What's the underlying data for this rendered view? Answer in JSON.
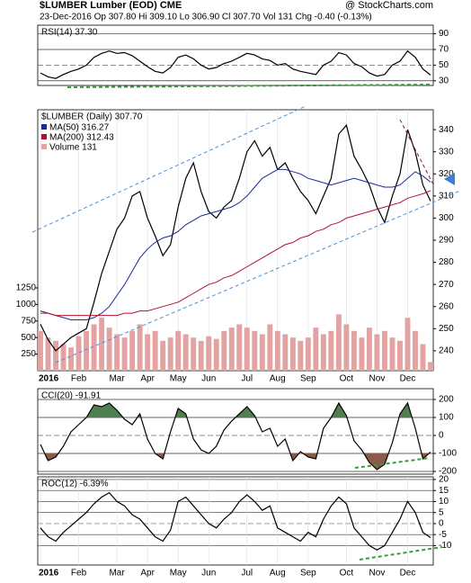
{
  "header": {
    "title": "$LUMBER Lumber (EOD) CME",
    "source": "@ StockCharts.com",
    "quote": "23-Dec-2016  Op 307.80  Hi 309.10  Lo 306.90  Cl 307.70  Vol 131  Chg -0.40 (-0.13%)"
  },
  "chart_data": [
    {
      "type": "line",
      "legend": "RSI(14) 37.30",
      "ylim": [
        24,
        101
      ],
      "yticks": [
        90,
        70,
        50,
        30
      ],
      "grid": true,
      "series": [
        {
          "name": "RSI(14)",
          "color": "#000000",
          "values": [
            40,
            35,
            33,
            38,
            42,
            45,
            50,
            60,
            65,
            68,
            65,
            66,
            62,
            55,
            48,
            42,
            40,
            47,
            60,
            63,
            58,
            50,
            45,
            47,
            52,
            55,
            60,
            65,
            63,
            58,
            56,
            50,
            52,
            45,
            42,
            40,
            38,
            50,
            55,
            66,
            63,
            52,
            48,
            40,
            36,
            38,
            50,
            55,
            68,
            60,
            45,
            37.3
          ]
        }
      ]
    },
    {
      "type": "line",
      "legend": "$LUMBER (Daily) 307.70",
      "categories": [
        "2016",
        null,
        null,
        null,
        null,
        "Feb",
        null,
        null,
        null,
        null,
        "Mar",
        null,
        null,
        null,
        "Apr",
        null,
        null,
        null,
        "May",
        null,
        null,
        null,
        "Jun",
        null,
        null,
        null,
        null,
        "Jul",
        null,
        null,
        null,
        "Aug",
        null,
        null,
        null,
        "Sep",
        null,
        null,
        null,
        null,
        "Oct",
        null,
        null,
        null,
        "Nov",
        null,
        null,
        null,
        "Dec",
        null,
        null,
        null
      ],
      "ylim": [
        231,
        349
      ],
      "yticks": [
        240,
        250,
        260,
        270,
        280,
        290,
        300,
        310,
        320,
        330,
        340
      ],
      "grid": false,
      "y2lim": [
        0,
        3940
      ],
      "y2ticks": [
        250,
        500,
        750,
        1000,
        1250
      ],
      "series": [
        {
          "name": "$LUMBER",
          "color": "#000000",
          "values": [
            252,
            245,
            240,
            243,
            246,
            248,
            250,
            262,
            275,
            285,
            295,
            300,
            310,
            312,
            300,
            292,
            283,
            288,
            305,
            318,
            325,
            312,
            303,
            300,
            305,
            308,
            318,
            330,
            335,
            328,
            332,
            322,
            325,
            318,
            312,
            308,
            302,
            310,
            318,
            338,
            342,
            328,
            322,
            315,
            305,
            298,
            310,
            320,
            340,
            330,
            315,
            307.7
          ]
        },
        {
          "name": "MA(50) 316.27",
          "color": "#1a2a9a",
          "values": [
            258,
            257,
            256,
            255,
            254,
            254,
            254,
            255,
            257,
            260,
            265,
            270,
            276,
            282,
            286,
            289,
            291,
            292,
            294,
            297,
            299,
            301,
            302,
            303,
            304,
            305,
            307,
            310,
            314,
            318,
            320,
            322,
            322,
            321,
            320,
            318,
            317,
            316,
            315,
            316,
            317,
            318,
            317,
            316,
            315,
            314,
            314,
            315,
            318,
            321,
            319,
            316.27
          ]
        },
        {
          "name": "MA(200) 312.43",
          "color": "#b01030",
          "values": [
            257,
            257,
            256,
            256,
            256,
            256,
            256,
            256,
            256,
            256,
            256,
            257,
            257,
            258,
            258,
            259,
            260,
            261,
            262,
            264,
            266,
            268,
            270,
            271,
            273,
            274,
            276,
            278,
            280,
            282,
            284,
            286,
            288,
            289,
            291,
            292,
            294,
            295,
            297,
            298,
            300,
            301,
            302,
            303,
            304,
            305,
            306,
            307,
            309,
            310,
            311,
            312.43
          ]
        },
        {
          "name": "Volume 131",
          "type": "bar",
          "axis": "y2",
          "color": "#e3a3a3",
          "values": [
            600,
            500,
            450,
            400,
            350,
            520,
            600,
            700,
            800,
            650,
            550,
            500,
            600,
            700,
            550,
            600,
            450,
            500,
            600,
            550,
            500,
            450,
            520,
            480,
            600,
            650,
            700,
            650,
            600,
            550,
            700,
            600,
            550,
            500,
            450,
            500,
            650,
            550,
            600,
            850,
            700,
            600,
            500,
            650,
            550,
            600,
            500,
            450,
            800,
            600,
            400,
            131
          ]
        }
      ]
    },
    {
      "type": "line",
      "legend": "CCI(20) -91.91",
      "ylim": [
        -215,
        260
      ],
      "yticks": [
        200,
        100,
        0,
        -100,
        -200
      ],
      "grid": true,
      "fill_above": {
        "level": 100,
        "color": "#4f7f4f"
      },
      "fill_below": {
        "level": -100,
        "color": "#8a5a4a"
      },
      "series": [
        {
          "name": "CCI(20)",
          "color": "#000000",
          "values": [
            -50,
            -140,
            -120,
            -60,
            20,
            60,
            100,
            170,
            160,
            180,
            140,
            90,
            60,
            120,
            -20,
            -100,
            -130,
            20,
            150,
            120,
            -20,
            -80,
            -100,
            -60,
            30,
            80,
            120,
            160,
            110,
            20,
            40,
            -60,
            -20,
            -140,
            -90,
            -120,
            -130,
            40,
            100,
            180,
            110,
            -30,
            -80,
            -150,
            -190,
            -160,
            -40,
            120,
            180,
            40,
            -130,
            -91.91
          ]
        }
      ]
    },
    {
      "type": "line",
      "legend": "ROC(12) -6.39%",
      "categories": [
        "2016",
        null,
        null,
        null,
        null,
        "Feb",
        null,
        null,
        null,
        null,
        "Mar",
        null,
        null,
        null,
        "Apr",
        null,
        null,
        null,
        "May",
        null,
        null,
        null,
        "Jun",
        null,
        null,
        null,
        null,
        "Jul",
        null,
        null,
        null,
        "Aug",
        null,
        null,
        null,
        "Sep",
        null,
        null,
        null,
        null,
        "Oct",
        null,
        null,
        null,
        "Nov",
        null,
        null,
        null,
        "Dec",
        null,
        null,
        null
      ],
      "ylim": [
        -18.8,
        21.2
      ],
      "yticks": [
        20,
        15,
        10,
        5,
        0,
        -5,
        -10
      ],
      "grid": true,
      "series": [
        {
          "name": "ROC(12)",
          "color": "#000000",
          "values": [
            -2,
            -6,
            -8,
            -4,
            -1,
            2,
            5,
            9,
            12,
            14,
            10,
            8,
            4,
            2,
            -2,
            -6,
            -8,
            -3,
            10,
            12,
            8,
            4,
            0,
            -2,
            2,
            5,
            10,
            13,
            10,
            6,
            8,
            -2,
            -4,
            -6,
            -8,
            -4,
            -6,
            2,
            8,
            12,
            9,
            -2,
            -6,
            -10,
            -12,
            -10,
            -4,
            2,
            10,
            5,
            -4,
            -6.39
          ]
        }
      ]
    }
  ]
}
